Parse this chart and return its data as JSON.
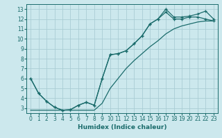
{
  "title": "",
  "xlabel": "Humidex (Indice chaleur)",
  "ylabel": "",
  "bg_color": "#cce8ed",
  "grid_color": "#aacdd5",
  "line_color": "#1a6b6b",
  "xlim": [
    -0.5,
    23.5
  ],
  "ylim": [
    2.5,
    13.5
  ],
  "xticks": [
    0,
    1,
    2,
    3,
    4,
    5,
    6,
    7,
    8,
    9,
    10,
    11,
    12,
    13,
    14,
    15,
    16,
    17,
    18,
    19,
    20,
    21,
    22,
    23
  ],
  "yticks": [
    3,
    4,
    5,
    6,
    7,
    8,
    9,
    10,
    11,
    12,
    13
  ],
  "hours": [
    0,
    1,
    2,
    3,
    4,
    5,
    6,
    7,
    8,
    9,
    10,
    11,
    12,
    13,
    14,
    15,
    16,
    17,
    18,
    19,
    20,
    21,
    22,
    23
  ],
  "line1": [
    6.0,
    4.5,
    3.7,
    3.1,
    2.8,
    2.85,
    3.3,
    3.6,
    3.3,
    6.0,
    8.4,
    8.5,
    8.8,
    9.5,
    10.3,
    11.5,
    12.0,
    13.0,
    12.2,
    12.2,
    12.3,
    12.5,
    12.8,
    12.0
  ],
  "line2": [
    6.0,
    4.5,
    3.7,
    3.1,
    2.8,
    2.85,
    3.3,
    3.6,
    3.3,
    6.0,
    8.4,
    8.5,
    8.8,
    9.5,
    10.3,
    11.5,
    12.0,
    12.7,
    12.0,
    12.0,
    12.2,
    12.2,
    12.0,
    11.8
  ],
  "line3": [
    2.8,
    2.8,
    2.8,
    2.8,
    2.8,
    2.8,
    2.8,
    2.8,
    2.8,
    3.5,
    5.0,
    6.0,
    7.0,
    7.8,
    8.5,
    9.2,
    9.8,
    10.5,
    11.0,
    11.3,
    11.5,
    11.7,
    11.8,
    11.8
  ]
}
